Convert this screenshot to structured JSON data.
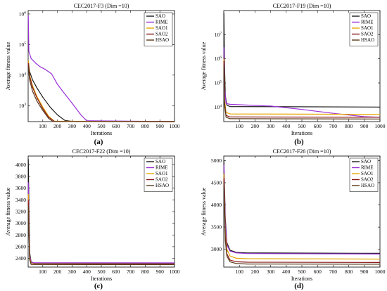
{
  "chart_data": [
    {
      "panel_label": "(a)",
      "type": "line",
      "title": "CEC2017-F3 (Dim =10)",
      "xlabel": "Iterations",
      "ylabel": "Average fitness value",
      "xlim": [
        0,
        1000
      ],
      "ylim": [
        300,
        1300000
      ],
      "yscale": "log",
      "xticks": [
        100,
        200,
        300,
        400,
        500,
        600,
        700,
        800,
        900,
        1000
      ],
      "yticks": [
        {
          "value": 1000,
          "label": "10^3"
        },
        {
          "value": 10000,
          "label": "10^4"
        },
        {
          "value": 100000,
          "label": "10^5"
        },
        {
          "value": 1000000,
          "label": "10^6"
        }
      ],
      "legend": "top-right",
      "series": [
        {
          "name": "SAO",
          "color": "#1a1a1a",
          "x": [
            1,
            10,
            30,
            60,
            100,
            150,
            200,
            250,
            300,
            1000
          ],
          "y": [
            30000,
            13000,
            7000,
            3800,
            1900,
            900,
            500,
            330,
            305,
            300
          ]
        },
        {
          "name": "RIME",
          "color": "#9b30d9",
          "x": [
            1,
            5,
            20,
            50,
            80,
            120,
            160,
            200,
            240,
            280,
            320,
            360,
            400,
            1000
          ],
          "y": [
            900000,
            60000,
            35000,
            25000,
            19000,
            15000,
            11000,
            5000,
            2800,
            1600,
            900,
            500,
            320,
            300
          ]
        },
        {
          "name": "SAO1",
          "color": "#e6a700",
          "x": [
            1,
            10,
            30,
            60,
            100,
            140,
            180,
            1000
          ],
          "y": [
            30000,
            10000,
            4500,
            2000,
            900,
            450,
            310,
            300
          ]
        },
        {
          "name": "SAO2",
          "color": "#8b1a1a",
          "x": [
            1,
            10,
            30,
            60,
            100,
            140,
            180,
            1000
          ],
          "y": [
            25000,
            9000,
            4000,
            1800,
            800,
            420,
            305,
            300
          ]
        },
        {
          "name": "HSAO",
          "color": "#5a3a1a",
          "x": [
            1,
            10,
            30,
            60,
            100,
            140,
            170,
            1000
          ],
          "y": [
            20000,
            7000,
            3000,
            1400,
            700,
            380,
            302,
            300
          ]
        }
      ]
    },
    {
      "panel_label": "(b)",
      "type": "line",
      "title": "CEC2017-F19 (Dim =10)",
      "xlabel": "Iterations",
      "ylabel": "Average fitness value",
      "xlim": [
        0,
        1000
      ],
      "ylim": [
        2500,
        100000000
      ],
      "yscale": "log",
      "xticks": [
        100,
        200,
        300,
        400,
        500,
        600,
        700,
        800,
        900,
        1000
      ],
      "yticks": [
        {
          "value": 10000,
          "label": "10^4"
        },
        {
          "value": 100000,
          "label": "10^5"
        },
        {
          "value": 1000000,
          "label": "10^6"
        },
        {
          "value": 10000000,
          "label": "10^7"
        }
      ],
      "legend": "top-right",
      "series": [
        {
          "name": "SAO",
          "color": "#1a1a1a",
          "x": [
            1,
            5,
            10,
            20,
            40,
            1000
          ],
          "y": [
            80000000,
            600000,
            30000,
            12000,
            10500,
            10000
          ]
        },
        {
          "name": "RIME",
          "color": "#9b30d9",
          "x": [
            1,
            5,
            15,
            40,
            100,
            300,
            500,
            700,
            900,
            1000
          ],
          "y": [
            3000000,
            60000,
            14000,
            13000,
            12500,
            11000,
            8000,
            5500,
            4000,
            3800
          ]
        },
        {
          "name": "SAO1",
          "color": "#e6a700",
          "x": [
            1,
            5,
            15,
            40,
            1000
          ],
          "y": [
            1000000,
            20000,
            6000,
            5200,
            5000
          ]
        },
        {
          "name": "SAO2",
          "color": "#8b1a1a",
          "x": [
            1,
            5,
            15,
            40,
            1000
          ],
          "y": [
            800000,
            15000,
            4500,
            3900,
            3800
          ]
        },
        {
          "name": "HSAO",
          "color": "#5a3a1a",
          "x": [
            1,
            5,
            15,
            40,
            1000
          ],
          "y": [
            500000,
            12000,
            3800,
            3300,
            3200
          ]
        }
      ]
    },
    {
      "panel_label": "(c)",
      "type": "line",
      "title": "CEC2017-F22 (Dim =10)",
      "xlabel": "Iterations",
      "ylabel": "Average fitness value",
      "xlim": [
        0,
        1000
      ],
      "ylim": [
        2250,
        4150
      ],
      "yscale": "linear",
      "xticks": [
        100,
        200,
        300,
        400,
        500,
        600,
        700,
        800,
        900,
        1000
      ],
      "yticks": [
        {
          "value": 2400,
          "label": "2400"
        },
        {
          "value": 2600,
          "label": "2600"
        },
        {
          "value": 2800,
          "label": "2800"
        },
        {
          "value": 3000,
          "label": "3000"
        },
        {
          "value": 3200,
          "label": "3200"
        },
        {
          "value": 3400,
          "label": "3400"
        },
        {
          "value": 3600,
          "label": "3600"
        },
        {
          "value": 3800,
          "label": "3800"
        },
        {
          "value": 4000,
          "label": "4000"
        }
      ],
      "legend": "top-right",
      "series": [
        {
          "name": "SAO",
          "color": "#1a1a1a",
          "x": [
            1,
            10,
            20,
            40,
            1000
          ],
          "y": [
            4100,
            2500,
            2340,
            2320,
            2318
          ]
        },
        {
          "name": "RIME",
          "color": "#9b30d9",
          "x": [
            1,
            10,
            20,
            40,
            1000
          ],
          "y": [
            3700,
            2450,
            2330,
            2325,
            2322
          ]
        },
        {
          "name": "SAO1",
          "color": "#e6a700",
          "x": [
            1,
            10,
            20,
            40,
            1000
          ],
          "y": [
            3500,
            2420,
            2310,
            2305,
            2303
          ]
        },
        {
          "name": "SAO2",
          "color": "#8b1a1a",
          "x": [
            1,
            10,
            20,
            40,
            1000
          ],
          "y": [
            3400,
            2400,
            2302,
            2300,
            2300
          ]
        },
        {
          "name": "HSAO",
          "color": "#5a3a1a",
          "x": [
            1,
            10,
            20,
            40,
            1000
          ],
          "y": [
            3300,
            2380,
            2296,
            2294,
            2293
          ]
        }
      ]
    },
    {
      "panel_label": "(d)",
      "type": "line",
      "title": "CEC2017-F26 (Dim =10)",
      "xlabel": "Iterations",
      "ylabel": "Average fitness value",
      "xlim": [
        0,
        1000
      ],
      "ylim": [
        2600,
        5100
      ],
      "yscale": "linear",
      "xticks": [
        100,
        200,
        300,
        400,
        500,
        600,
        700,
        800,
        900,
        1000
      ],
      "yticks": [
        {
          "value": 3000,
          "label": "3000"
        },
        {
          "value": 3500,
          "label": "3500"
        },
        {
          "value": 4000,
          "label": "4000"
        },
        {
          "value": 4500,
          "label": "4500"
        },
        {
          "value": 5000,
          "label": "5000"
        }
      ],
      "legend": "top-right",
      "series": [
        {
          "name": "SAO",
          "color": "#1a1a1a",
          "x": [
            1,
            10,
            20,
            40,
            80,
            150,
            1000
          ],
          "y": [
            5000,
            3700,
            3150,
            2980,
            2930,
            2920,
            2910
          ]
        },
        {
          "name": "RIME",
          "color": "#9b30d9",
          "x": [
            1,
            10,
            20,
            40,
            80,
            150,
            1000
          ],
          "y": [
            4900,
            3600,
            3100,
            2960,
            2920,
            2905,
            2895
          ]
        },
        {
          "name": "SAO1",
          "color": "#e6a700",
          "x": [
            1,
            10,
            20,
            40,
            80,
            150,
            1000
          ],
          "y": [
            4700,
            3400,
            3000,
            2850,
            2800,
            2790,
            2780
          ]
        },
        {
          "name": "SAO2",
          "color": "#8b1a1a",
          "x": [
            1,
            10,
            20,
            40,
            80,
            150,
            1000
          ],
          "y": [
            4600,
            3300,
            2900,
            2760,
            2720,
            2710,
            2705
          ]
        },
        {
          "name": "HSAO",
          "color": "#5a3a1a",
          "x": [
            1,
            10,
            20,
            40,
            80,
            150,
            1000
          ],
          "y": [
            4500,
            3200,
            2850,
            2720,
            2680,
            2670,
            2665
          ]
        }
      ]
    }
  ]
}
